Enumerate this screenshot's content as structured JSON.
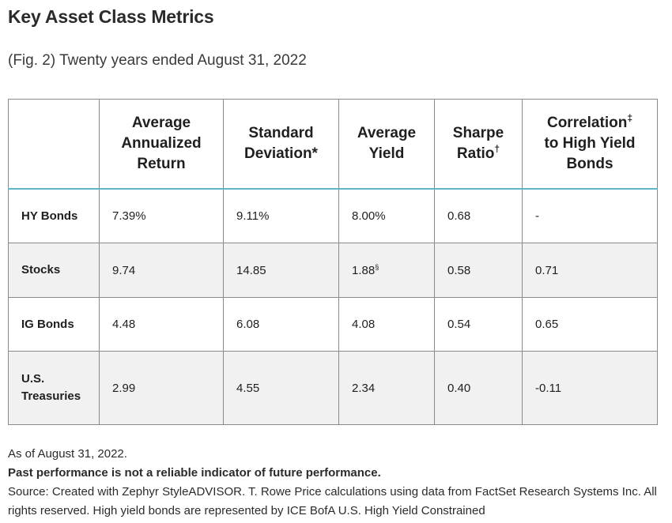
{
  "title": "Key Asset Class Metrics",
  "subtitle": "(Fig. 2) Twenty years ended August 31, 2022",
  "table": {
    "headers": [
      {
        "text": "",
        "mark": ""
      },
      {
        "text": "Average Annualized Return",
        "mark": ""
      },
      {
        "text": "Standard Deviation*",
        "mark": ""
      },
      {
        "text": "Average Yield",
        "mark": ""
      },
      {
        "text": "Sharpe Ratio",
        "mark": "†"
      },
      {
        "text": "Correlation",
        "mark": "‡",
        "text2": "to High Yield Bonds"
      }
    ],
    "rows": [
      {
        "label": "HY Bonds",
        "return": "7.39%",
        "std_dev": "9.11%",
        "yield": "8.00%",
        "yield_mark": "",
        "sharpe": "0.68",
        "correlation": "-"
      },
      {
        "label": "Stocks",
        "return": "9.74",
        "std_dev": "14.85",
        "yield": "1.88",
        "yield_mark": "§",
        "sharpe": "0.58",
        "correlation": "0.71"
      },
      {
        "label": "IG Bonds",
        "return": "4.48",
        "std_dev": "6.08",
        "yield": "4.08",
        "yield_mark": "",
        "sharpe": "0.54",
        "correlation": "0.65"
      },
      {
        "label": "U.S. Treasuries",
        "return": "2.99",
        "std_dev": "4.55",
        "yield": "2.34",
        "yield_mark": "",
        "sharpe": "0.40",
        "correlation": "-0.11"
      }
    ]
  },
  "notes": {
    "as_of": "As of August 31, 2022.",
    "disclaimer": "Past performance is not a reliable indicator of future performance.",
    "source": "Source: Created with Zephyr StyleADVISOR. T. Rowe Price calculations using data from FactSet Research Systems Inc. All rights reserved. High yield bonds are represented by ICE BofA U.S. High Yield Constrained"
  },
  "colors": {
    "header_rule": "#5fb6c4",
    "zebra_row": "#f1f1f1",
    "grid": "#8a8a8a"
  }
}
